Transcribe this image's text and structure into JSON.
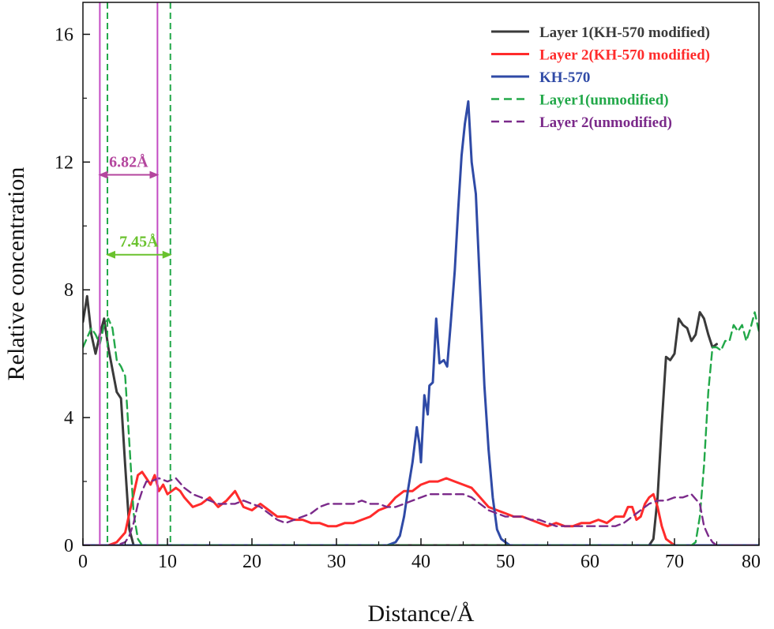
{
  "chart_data": {
    "type": "line",
    "xlabel": "Distance/Å",
    "ylabel": "Relative concentration",
    "xlim": [
      0,
      80
    ],
    "ylim": [
      0,
      17
    ],
    "xticks": [
      "0",
      "10",
      "20",
      "30",
      "40",
      "50",
      "60",
      "70",
      "80"
    ],
    "yticks": [
      "0",
      "4",
      "8",
      "12",
      "16"
    ],
    "legend_position": "top-right",
    "series": [
      {
        "name": "Layer 1(KH-570 modified)",
        "color": "#3a3a3a",
        "dash": "solid",
        "x": [
          0,
          0.5,
          1,
          1.5,
          2,
          2.5,
          3,
          3.5,
          4,
          4.5,
          5,
          5.5,
          6,
          6.5,
          7,
          8,
          20,
          40,
          60,
          67,
          67.5,
          68,
          68.5,
          69,
          69.5,
          70,
          70.5,
          71,
          71.5,
          72,
          72.5,
          73,
          73.5,
          74,
          74.5,
          75
        ],
        "y": [
          7,
          7.8,
          6.6,
          6,
          6.6,
          7.1,
          6.2,
          5.5,
          4.8,
          4.6,
          2.5,
          0.5,
          0,
          0,
          0,
          0,
          0,
          0,
          0,
          0,
          0.2,
          1.5,
          3.8,
          5.9,
          5.8,
          6,
          7.1,
          6.9,
          6.8,
          6.4,
          6.6,
          7.3,
          7.1,
          6.6,
          6.2,
          6.3
        ],
        "markers": false
      },
      {
        "name": "Layer 2(KH-570 modified)",
        "color": "#ff2b2b",
        "dash": "solid",
        "x": [
          0,
          3,
          4,
          5,
          5.5,
          6,
          6.5,
          7,
          7.5,
          8,
          8.5,
          9,
          9.5,
          10,
          10.5,
          11,
          11.5,
          12,
          13,
          14,
          15,
          16,
          17,
          18,
          19,
          20,
          21,
          22,
          23,
          24,
          25,
          26,
          27,
          28,
          29,
          30,
          31,
          32,
          33,
          34,
          35,
          36,
          37,
          38,
          39,
          40,
          41,
          42,
          43,
          44,
          45,
          46,
          47,
          48,
          49,
          50,
          51,
          52,
          53,
          54,
          55,
          56,
          57,
          58,
          59,
          60,
          61,
          62,
          63,
          64,
          64.5,
          65,
          65.5,
          66,
          66.5,
          67,
          67.5,
          68,
          68.5,
          69,
          70,
          72,
          80
        ],
        "y": [
          0,
          0,
          0.1,
          0.4,
          1,
          1.6,
          2.2,
          2.3,
          2.1,
          1.9,
          2.2,
          1.7,
          1.9,
          1.6,
          1.7,
          1.8,
          1.7,
          1.5,
          1.2,
          1.3,
          1.5,
          1.2,
          1.4,
          1.7,
          1.2,
          1.1,
          1.3,
          1.1,
          0.9,
          0.9,
          0.8,
          0.8,
          0.7,
          0.7,
          0.6,
          0.6,
          0.7,
          0.7,
          0.8,
          0.9,
          1.1,
          1.2,
          1.5,
          1.7,
          1.7,
          1.9,
          2,
          2,
          2.1,
          2,
          1.9,
          1.8,
          1.5,
          1.2,
          1.1,
          1,
          0.9,
          0.9,
          0.8,
          0.7,
          0.6,
          0.7,
          0.6,
          0.6,
          0.7,
          0.7,
          0.8,
          0.7,
          0.9,
          0.9,
          1.2,
          1.2,
          0.8,
          0.9,
          1.3,
          1.5,
          1.6,
          1.2,
          0.6,
          0.2,
          0,
          0,
          0
        ],
        "markers": false
      },
      {
        "name": "KH-570",
        "color": "#2f4aa6",
        "dash": "solid",
        "x": [
          0,
          20,
          36,
          37,
          37.5,
          38,
          38.5,
          39,
          39.5,
          39.8,
          40,
          40.4,
          40.8,
          41,
          41.4,
          41.8,
          42.2,
          42.7,
          43.1,
          43.5,
          44,
          44.4,
          44.8,
          45.2,
          45.6,
          46,
          46.5,
          47,
          47.5,
          48,
          48.5,
          49,
          49.5,
          50,
          50.5,
          51,
          52,
          60,
          80
        ],
        "y": [
          0,
          0,
          0,
          0.1,
          0.3,
          0.9,
          1.8,
          2.6,
          3.7,
          3.2,
          2.6,
          4.7,
          4.1,
          5,
          5.1,
          7.1,
          5.7,
          5.8,
          5.6,
          6.9,
          8.6,
          10.5,
          12.2,
          13.2,
          13.9,
          12,
          11,
          8,
          5,
          3,
          1.5,
          0.5,
          0.2,
          0.1,
          0,
          0,
          0,
          0,
          0
        ],
        "markers": false
      },
      {
        "name": "Layer1(unmodified)",
        "color": "#22a849",
        "dash": "dashed",
        "x": [
          0,
          0.5,
          1,
          1.5,
          2,
          2.5,
          3,
          3.5,
          4,
          4.5,
          5,
          5.5,
          6,
          6.5,
          7,
          8,
          20,
          40,
          60,
          71,
          71.5,
          72,
          72.5,
          73,
          73.5,
          74,
          74.5,
          75,
          75.5,
          76,
          76.5,
          77,
          77.5,
          78,
          78.5,
          79,
          79.5,
          80
        ],
        "y": [
          6.2,
          6.5,
          6.8,
          6.6,
          6.3,
          6.9,
          7.1,
          6.8,
          5.8,
          5.6,
          5.3,
          3.2,
          1,
          0.2,
          0,
          0,
          0,
          0,
          0,
          0,
          0,
          0,
          0.1,
          0.9,
          2.5,
          4.8,
          6.2,
          6.2,
          6.1,
          6.4,
          6.4,
          6.9,
          6.7,
          6.9,
          6.4,
          6.8,
          7.3,
          6.7
        ],
        "markers": false
      },
      {
        "name": "Layer 2(unmodified)",
        "color": "#7b2a8a",
        "dash": "dashed",
        "x": [
          0,
          4,
          5,
          5.5,
          6,
          6.5,
          7,
          7.5,
          8,
          9,
          10,
          11,
          12,
          13,
          14,
          15,
          16,
          17,
          18,
          19,
          20,
          21,
          22,
          23,
          24,
          25,
          26,
          27,
          28,
          29,
          30,
          31,
          32,
          33,
          34,
          35,
          36,
          37,
          38,
          39,
          40,
          41,
          42,
          43,
          44,
          45,
          46,
          47,
          48,
          49,
          50,
          51,
          52,
          53,
          54,
          55,
          56,
          57,
          58,
          59,
          60,
          61,
          62,
          63,
          64,
          65,
          66,
          67,
          68,
          69,
          70,
          71,
          72,
          73,
          73.5,
          74,
          74.5,
          75,
          76,
          80
        ],
        "y": [
          0,
          0,
          0.1,
          0.3,
          0.7,
          1.3,
          1.7,
          2,
          2,
          2.1,
          2,
          2.1,
          1.8,
          1.6,
          1.5,
          1.4,
          1.3,
          1.3,
          1.3,
          1.4,
          1.3,
          1.2,
          1,
          0.8,
          0.7,
          0.8,
          0.9,
          1,
          1.2,
          1.3,
          1.3,
          1.3,
          1.3,
          1.4,
          1.3,
          1.3,
          1.2,
          1.2,
          1.3,
          1.4,
          1.5,
          1.6,
          1.6,
          1.6,
          1.6,
          1.6,
          1.5,
          1.3,
          1.1,
          1,
          0.9,
          0.9,
          0.9,
          0.8,
          0.8,
          0.7,
          0.6,
          0.6,
          0.6,
          0.6,
          0.6,
          0.6,
          0.6,
          0.6,
          0.7,
          0.9,
          1.1,
          1.3,
          1.4,
          1.4,
          1.5,
          1.5,
          1.6,
          1.3,
          0.6,
          0.3,
          0.1,
          0,
          0,
          0
        ],
        "markers": false
      }
    ],
    "annotations": {
      "vertical_lines": [
        {
          "x": 2.0,
          "color": "#c44cc4",
          "dash": "solid"
        },
        {
          "x": 8.82,
          "color": "#c44cc4",
          "dash": "solid"
        },
        {
          "x": 2.9,
          "color": "#22a849",
          "dash": "dashed"
        },
        {
          "x": 10.35,
          "color": "#22a849",
          "dash": "dashed"
        }
      ],
      "arrows": [
        {
          "label": "6.82Å",
          "x_from": 2.0,
          "x_to": 8.82,
          "y": 11.6,
          "color": "#b4469e"
        },
        {
          "label": "7.45Å",
          "x_from": 2.9,
          "x_to": 10.35,
          "y": 9.1,
          "color": "#6ac22e"
        }
      ]
    },
    "grid": false
  }
}
